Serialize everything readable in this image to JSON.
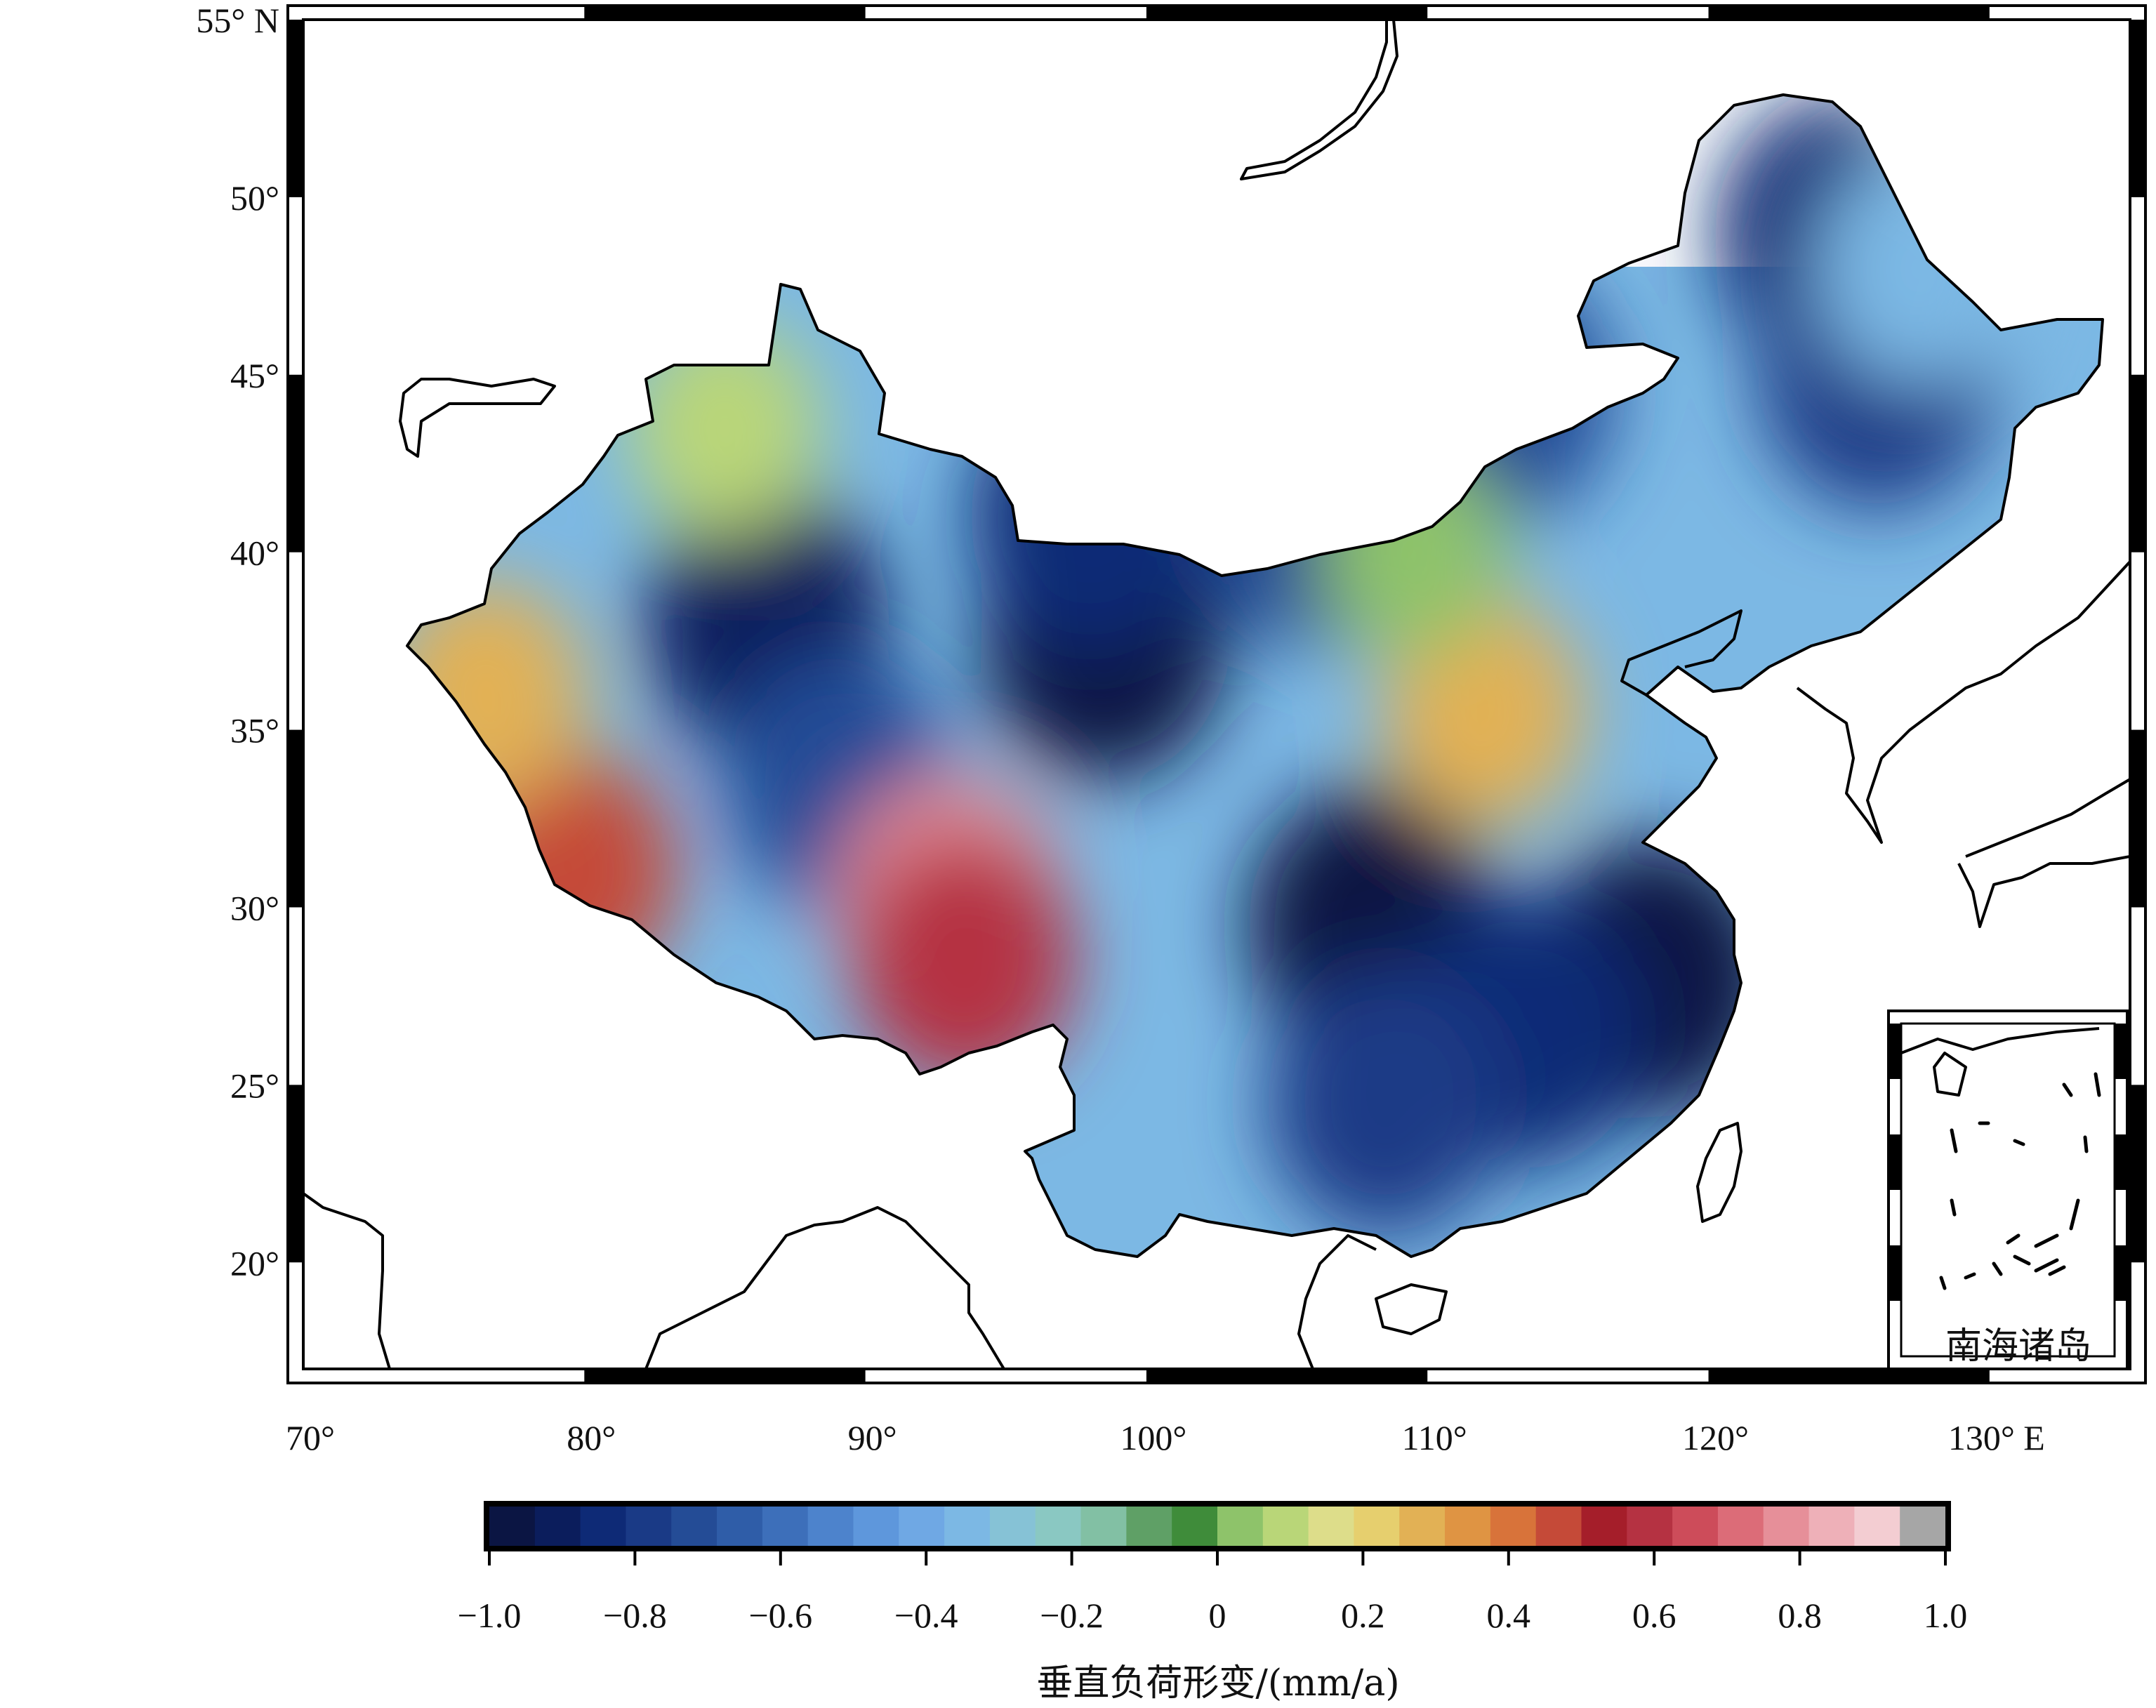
{
  "map": {
    "lon_range": [
      70,
      135
    ],
    "lat_range": [
      17,
      55
    ],
    "lon_ticks": [
      {
        "value": 70,
        "label": "70°"
      },
      {
        "value": 80,
        "label": "80°"
      },
      {
        "value": 90,
        "label": "90°"
      },
      {
        "value": 100,
        "label": "100°"
      },
      {
        "value": 110,
        "label": "110°"
      },
      {
        "value": 120,
        "label": "120°"
      },
      {
        "value": 130,
        "label": "130° E"
      }
    ],
    "lat_ticks": [
      {
        "value": 55,
        "label": "55° N"
      },
      {
        "value": 50,
        "label": "50°"
      },
      {
        "value": 45,
        "label": "45°"
      },
      {
        "value": 40,
        "label": "40°"
      },
      {
        "value": 35,
        "label": "35°"
      },
      {
        "value": 30,
        "label": "30°"
      },
      {
        "value": 25,
        "label": "25°"
      },
      {
        "value": 20,
        "label": "20°"
      }
    ],
    "inset_label": "南海诸岛",
    "anomalies": [
      {
        "lon": 86.5,
        "lat": 38.0,
        "value": -0.9
      },
      {
        "lon": 98.5,
        "lat": 37.5,
        "value": -0.95
      },
      {
        "lon": 98.0,
        "lat": 41.0,
        "value": -0.85
      },
      {
        "lon": 108.0,
        "lat": 29.5,
        "value": -0.95
      },
      {
        "lon": 118.0,
        "lat": 28.0,
        "value": -0.95
      },
      {
        "lon": 113.5,
        "lat": 26.5,
        "value": -0.85
      },
      {
        "lon": 108.5,
        "lat": 24.5,
        "value": -0.8
      },
      {
        "lon": 124.5,
        "lat": 49.0,
        "value": -0.85
      },
      {
        "lon": 112.5,
        "lat": 44.5,
        "value": -0.75
      },
      {
        "lon": 126.0,
        "lat": 45.0,
        "value": -0.8
      },
      {
        "lon": 89.0,
        "lat": 33.5,
        "value": -0.7
      },
      {
        "lon": 106.0,
        "lat": 41.0,
        "value": -0.7
      },
      {
        "lon": 93.0,
        "lat": 30.0,
        "value": 0.75
      },
      {
        "lon": 93.5,
        "lat": 28.5,
        "value": 0.6
      },
      {
        "lon": 79.5,
        "lat": 31.0,
        "value": 0.45
      },
      {
        "lon": 76.5,
        "lat": 36.0,
        "value": 0.25
      },
      {
        "lon": 112.0,
        "lat": 35.5,
        "value": 0.25
      },
      {
        "lon": 85.0,
        "lat": 43.5,
        "value": 0.1
      },
      {
        "lon": 109.5,
        "lat": 40.0,
        "value": 0.05
      },
      {
        "lon": 127.5,
        "lat": 48.0,
        "value": -0.35
      }
    ]
  },
  "colorbar": {
    "min": -1.0,
    "max": 1.0,
    "ticks": [
      "−1.0",
      "−0.8",
      "−0.6",
      "−0.4",
      "−0.2",
      "0",
      "0.2",
      "0.4",
      "0.6",
      "0.8",
      "1.0"
    ],
    "colors": [
      "#0b1543",
      "#0b1d5c",
      "#0e2a76",
      "#1a3a86",
      "#244c96",
      "#2f5da8",
      "#3d6fba",
      "#4d83cc",
      "#5e97dc",
      "#6fa8e4",
      "#7cb8e4",
      "#86c2d6",
      "#8ac8c2",
      "#82c0a4",
      "#5fa066",
      "#3f8c3a",
      "#8ec36a",
      "#b9d678",
      "#dddd8a",
      "#e6cf6e",
      "#e2b155",
      "#df9443",
      "#d8733a",
      "#c54a38",
      "#a51e2a",
      "#b53242",
      "#cd4c5a",
      "#dc6c78",
      "#e68f99",
      "#eeb0b8",
      "#f3cdd2",
      "#a6a6a6"
    ],
    "title": "垂直负荷形变/(mm/a)"
  }
}
